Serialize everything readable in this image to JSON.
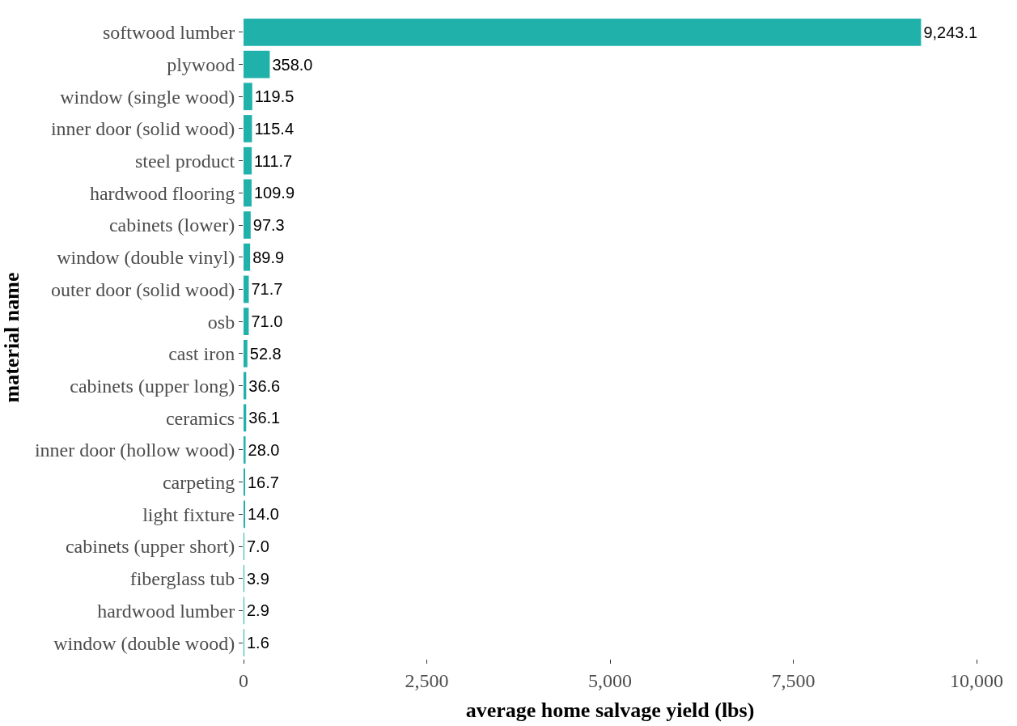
{
  "chart_data": {
    "type": "bar",
    "xlabel": "average home salvage yield (lbs)",
    "ylabel": "material name",
    "categories": [
      "softwood lumber",
      "plywood",
      "window (single wood)",
      "inner door (solid wood)",
      "steel product",
      "hardwood flooring",
      "cabinets (lower)",
      "window (double vinyl)",
      "outer door (solid wood)",
      "osb",
      "cast iron",
      "cabinets (upper long)",
      "ceramics",
      "inner door (hollow wood)",
      "carpeting",
      "light fixture",
      "cabinets (upper short)",
      "fiberglass tub",
      "hardwood lumber",
      "window (double wood)"
    ],
    "values": [
      9243.1,
      358.0,
      119.5,
      115.4,
      111.7,
      109.9,
      97.3,
      89.9,
      71.7,
      71.0,
      52.8,
      36.6,
      36.1,
      28.0,
      16.7,
      14.0,
      7.0,
      3.9,
      2.9,
      1.6
    ],
    "value_labels": [
      "9,243.1",
      "358.0",
      "119.5",
      "115.4",
      "111.7",
      "109.9",
      "97.3",
      "89.9",
      "71.7",
      "71.0",
      "52.8",
      "36.6",
      "36.1",
      "28.0",
      "16.7",
      "14.0",
      "7.0",
      "3.9",
      "2.9",
      "1.6"
    ],
    "color": "#20b2aa",
    "xlim": [
      0,
      10000
    ],
    "xticks": [
      0,
      {
        "value": 2500,
        "label": "2,500"
      },
      {
        "value": 5000,
        "label": "5,000"
      },
      {
        "value": 7500,
        "label": "7,500"
      },
      {
        "value": 10000,
        "label": "10,000"
      }
    ],
    "orientation": "horizontal"
  }
}
